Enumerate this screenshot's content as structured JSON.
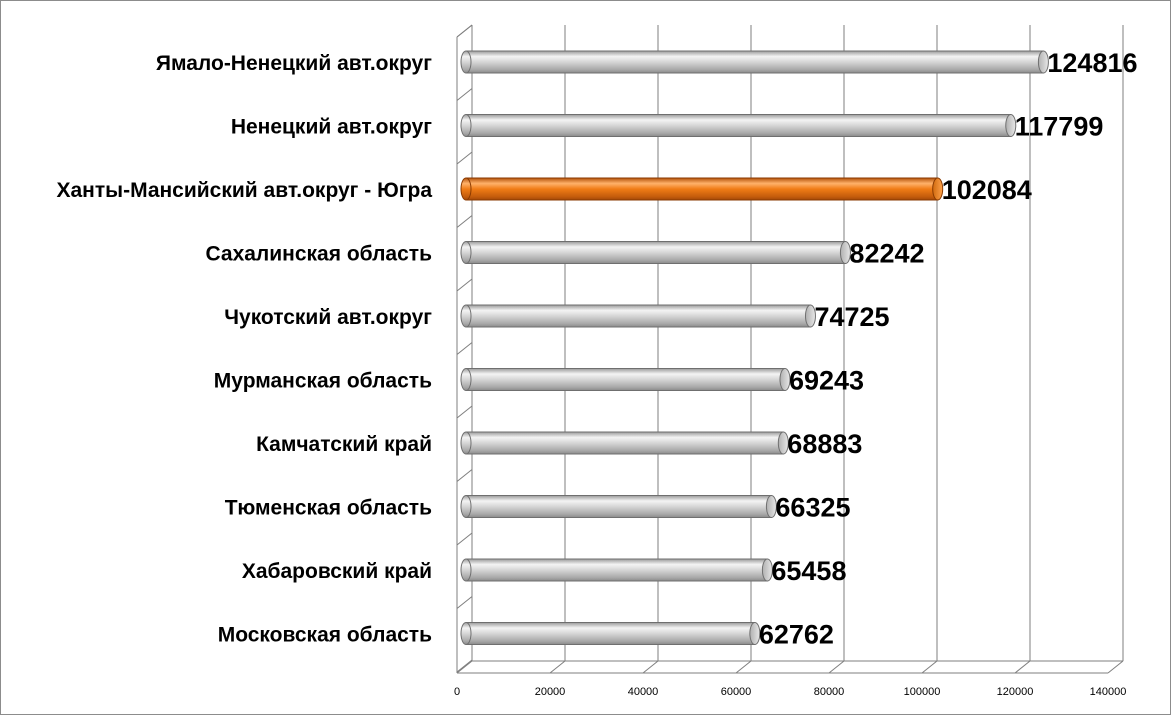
{
  "chart_data": {
    "type": "bar",
    "orientation": "horizontal",
    "categories": [
      "Ямало-Ненецкий авт.округ",
      "Ненецкий авт.округ",
      "Ханты-Мансийский авт.округ - Югра",
      "Сахалинская область",
      "Чукотский авт.округ",
      "Мурманская область",
      "Камчатский край",
      "Тюменская область",
      "Хабаровский край",
      "Московская область"
    ],
    "values": [
      124816,
      117799,
      102084,
      82242,
      74725,
      69243,
      68883,
      66325,
      65458,
      62762
    ],
    "value_labels": [
      "124816",
      "117799",
      "102084",
      "82242",
      "74725",
      "69243",
      "68883",
      "66325",
      "65458",
      "62762"
    ],
    "highlight_index": 2,
    "xlim": [
      0,
      140000
    ],
    "x_ticks": [
      0,
      20000,
      40000,
      60000,
      80000,
      100000,
      120000,
      140000
    ],
    "x_tick_labels": [
      "0",
      "20000",
      "40000",
      "60000",
      "80000",
      "100000",
      "120000",
      "140000"
    ],
    "grid": true,
    "legend": "none",
    "colors": {
      "bar": "#d4d4d4",
      "bar_highlight": "#f07c16",
      "grid": "#7f7f7f"
    },
    "title": "",
    "xlabel": "",
    "ylabel": ""
  }
}
